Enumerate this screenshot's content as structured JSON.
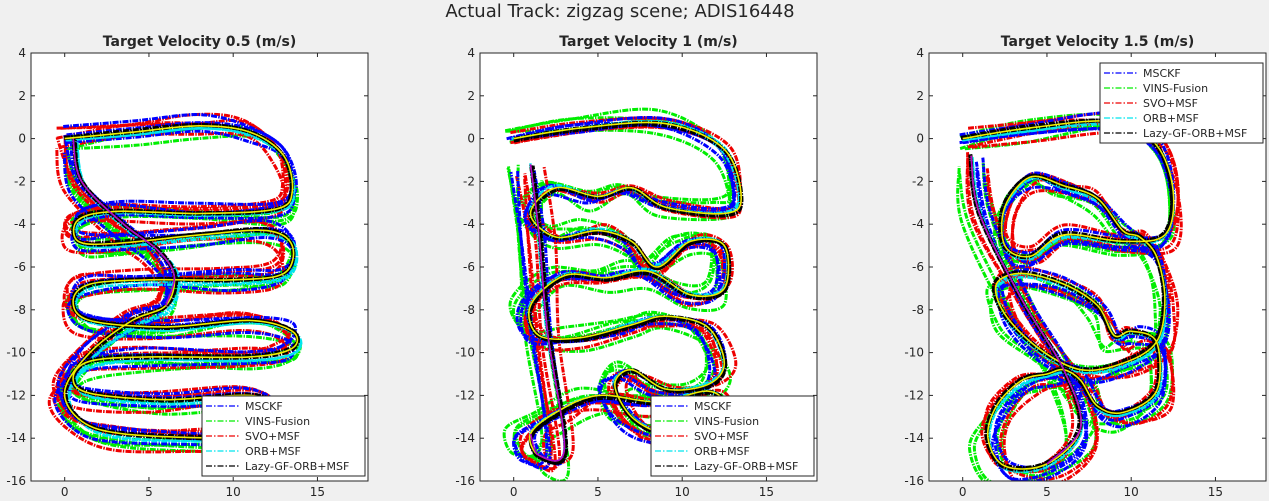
{
  "figure_title": "Actual Track: zigzag scene; ADIS16448",
  "colors": {
    "MSCKF": "#0000ff",
    "VINS-Fusion": "#00ee00",
    "SVO+MSF": "#ee0000",
    "ORB+MSF": "#00e5ee",
    "Lazy-GF-ORB+MSF": "#000000",
    "ground_truth_yellow": "#eeee00",
    "ground_truth_magenta": "#b000d0"
  },
  "chart_data": [
    {
      "type": "line",
      "title": "Target Velocity 0.5 (m/s)",
      "xlim": [
        -2,
        18
      ],
      "ylim": [
        -16,
        4
      ],
      "xticks": [
        0,
        5,
        10,
        15
      ],
      "yticks": [
        4,
        2,
        0,
        -2,
        -4,
        -6,
        -8,
        -10,
        -12,
        -14,
        -16
      ],
      "grid": false,
      "legend_position": "bottom-right",
      "series": [
        {
          "name": "MSCKF",
          "style": "dash-dot"
        },
        {
          "name": "VINS-Fusion",
          "style": "dash-dot"
        },
        {
          "name": "SVO+MSF",
          "style": "dash-dot"
        },
        {
          "name": "ORB+MSF",
          "style": "dash-dot"
        },
        {
          "name": "Lazy-GF-ORB+MSF",
          "style": "dash-dot"
        }
      ],
      "trajectory": {
        "x": [
          0,
          4,
          8,
          11,
          13,
          13.5,
          12.5,
          8,
          3,
          0.8,
          0.8,
          3,
          8,
          12,
          13.5,
          13,
          10,
          5,
          1.5,
          0.5,
          1.5,
          6,
          11,
          13.5,
          13.5,
          11,
          5,
          1.5,
          0.5,
          1.5,
          6,
          11,
          13,
          13.5,
          12.5,
          9,
          3.5,
          1,
          0,
          1.5,
          4,
          6,
          6.5,
          5.5,
          3.5,
          1,
          0.5
        ],
        "y": [
          0,
          0.3,
          0.6,
          0.3,
          -0.8,
          -2.5,
          -3.3,
          -3.5,
          -3.4,
          -3.8,
          -4.8,
          -4.9,
          -4.5,
          -4.3,
          -5,
          -6.3,
          -6.6,
          -6.6,
          -6.8,
          -7.6,
          -8.5,
          -8.8,
          -8.5,
          -9,
          -9.8,
          -10.2,
          -10.2,
          -10.4,
          -11.2,
          -11.9,
          -12.2,
          -12,
          -12.6,
          -13.4,
          -14,
          -14,
          -13.8,
          -13.2,
          -11.8,
          -10,
          -8.5,
          -7.8,
          -6.4,
          -5.2,
          -4,
          -2,
          0
        ]
      }
    },
    {
      "type": "line",
      "title": "Target Velocity 1 (m/s)",
      "xlim": [
        -2,
        18
      ],
      "ylim": [
        -16,
        4
      ],
      "xticks": [
        0,
        5,
        10,
        15
      ],
      "yticks": [
        4,
        2,
        0,
        -2,
        -4,
        -6,
        -8,
        -10,
        -12,
        -14,
        -16
      ],
      "grid": false,
      "legend_position": "bottom-right",
      "series": [
        {
          "name": "MSCKF",
          "style": "dash-dot"
        },
        {
          "name": "VINS-Fusion",
          "style": "dash-dot"
        },
        {
          "name": "SVO+MSF",
          "style": "dash-dot"
        },
        {
          "name": "ORB+MSF",
          "style": "dash-dot"
        },
        {
          "name": "Lazy-GF-ORB+MSF",
          "style": "dash-dot"
        }
      ],
      "trajectory": {
        "x": [
          0,
          4,
          9,
          12.5,
          13.5,
          12.5,
          9,
          7,
          5,
          2.5,
          1,
          2.5,
          5,
          7,
          8.5,
          10.5,
          12.5,
          12.5,
          10.5,
          8,
          5.5,
          3,
          1,
          1.5,
          4,
          7,
          9,
          11.5,
          12.5,
          11.5,
          9,
          7,
          6,
          7,
          9,
          11,
          12.5,
          11.5,
          8.5,
          5,
          2.5,
          1,
          1.5,
          3,
          2,
          1.5,
          1
        ],
        "y": [
          0,
          0.5,
          0.7,
          -0.5,
          -2.8,
          -3.5,
          -3.2,
          -2.3,
          -2.7,
          -2.3,
          -3.5,
          -4.6,
          -4.3,
          -4.8,
          -6,
          -4.8,
          -5,
          -7,
          -7.3,
          -6.2,
          -6.5,
          -6.4,
          -7.8,
          -9.2,
          -9.3,
          -8.7,
          -8.3,
          -8.8,
          -10.5,
          -11.5,
          -11.7,
          -10.8,
          -11.5,
          -13,
          -13.8,
          -13.5,
          -12.5,
          -11.8,
          -12.3,
          -12,
          -12.8,
          -13.8,
          -14.8,
          -14.5,
          -9,
          -4.5,
          -1.2
        ]
      }
    },
    {
      "type": "line",
      "title": "Target Velocity 1.5 (m/s)",
      "xlim": [
        -2,
        18
      ],
      "ylim": [
        -16,
        4
      ],
      "xticks": [
        0,
        5,
        10,
        15
      ],
      "yticks": [
        4,
        2,
        0,
        -2,
        -4,
        -6,
        -8,
        -10,
        -12,
        -14,
        -16
      ],
      "grid": false,
      "legend_position": "top-right",
      "series": [
        {
          "name": "MSCKF",
          "style": "dash-dot"
        },
        {
          "name": "VINS-Fusion",
          "style": "dash-dot"
        },
        {
          "name": "SVO+MSF",
          "style": "dash-dot"
        },
        {
          "name": "ORB+MSF",
          "style": "dash-dot"
        },
        {
          "name": "Lazy-GF-ORB+MSF",
          "style": "dash-dot"
        }
      ],
      "trajectory": {
        "x": [
          0,
          4,
          9,
          11.5,
          12.5,
          12,
          9.5,
          6,
          4,
          2.5,
          2.5,
          4,
          6,
          8,
          9.5,
          10.5,
          11.5,
          12,
          11.5,
          9.5,
          7,
          4.5,
          2.5,
          2,
          3.5,
          6,
          8,
          9,
          10,
          11.5,
          11.5,
          9.5,
          8,
          7,
          6,
          5,
          3.5,
          2,
          1.5,
          2.5,
          5,
          7,
          6,
          3.5,
          1,
          0.5
        ],
        "y": [
          0,
          0.5,
          0.8,
          -0.3,
          -2.5,
          -4.5,
          -4.8,
          -4.5,
          -5.5,
          -5,
          -3.2,
          -1.8,
          -2.2,
          -2.8,
          -4.3,
          -4.6,
          -5.5,
          -7.5,
          -9.5,
          -10.5,
          -10.8,
          -9.8,
          -8.2,
          -6.8,
          -6.3,
          -6.8,
          -7.8,
          -9.2,
          -9,
          -9.5,
          -11.8,
          -12.8,
          -12.5,
          -11.3,
          -10.8,
          -11,
          -11.3,
          -12.5,
          -14,
          -15.3,
          -15.2,
          -13.5,
          -10.8,
          -7.5,
          -3.5,
          -0.8
        ]
      }
    }
  ]
}
